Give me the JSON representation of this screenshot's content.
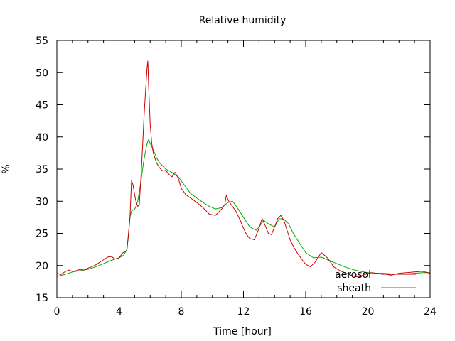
{
  "chart_data": {
    "type": "line",
    "title": "Relative humidity",
    "xlabel": "Time [hour]",
    "ylabel": "%",
    "xlim": [
      0,
      24
    ],
    "ylim": [
      15,
      55
    ],
    "xticks": [
      0,
      4,
      8,
      12,
      16,
      20,
      24
    ],
    "yticks": [
      15,
      20,
      25,
      30,
      35,
      40,
      45,
      50,
      55
    ],
    "grid": false,
    "legend_position": "bottom-right",
    "series": [
      {
        "name": "aerosol",
        "color": "#cc0000",
        "x": [
          0,
          0.25,
          0.5,
          0.75,
          1,
          1.25,
          1.5,
          1.75,
          2,
          2.25,
          2.5,
          2.75,
          3,
          3.25,
          3.5,
          3.75,
          4,
          4.25,
          4.5,
          4.7,
          4.8,
          4.9,
          5,
          5.1,
          5.2,
          5.3,
          5.4,
          5.5,
          5.6,
          5.7,
          5.8,
          5.85,
          5.9,
          6,
          6.1,
          6.2,
          6.4,
          6.6,
          6.8,
          7,
          7.2,
          7.4,
          7.6,
          7.8,
          8,
          8.3,
          8.6,
          9,
          9.4,
          9.8,
          10.2,
          10.6,
          10.8,
          10.9,
          11,
          11.2,
          11.5,
          11.8,
          12,
          12.2,
          12.4,
          12.7,
          13,
          13.2,
          13.4,
          13.6,
          13.8,
          14,
          14.2,
          14.4,
          14.6,
          14.8,
          15,
          15.2,
          15.5,
          15.8,
          16,
          16.3,
          16.6,
          17,
          17.4,
          17.8,
          18.2,
          18.6,
          19,
          19.4,
          19.8,
          20.2,
          20.6,
          21,
          21.5,
          22,
          22.5,
          23,
          23.5,
          24
        ],
        "values": [
          18.8,
          18.6,
          19.0,
          19.3,
          19.1,
          19.2,
          19.4,
          19.3,
          19.6,
          19.8,
          20.1,
          20.5,
          20.9,
          21.3,
          21.4,
          21.0,
          21.2,
          22.0,
          22.3,
          27.5,
          33.2,
          32.5,
          31.0,
          29.8,
          29.2,
          29.5,
          33.5,
          38.0,
          43.0,
          47.0,
          50.8,
          51.8,
          48.0,
          42.0,
          39.0,
          37.5,
          36.0,
          35.2,
          34.7,
          34.8,
          34.2,
          33.8,
          34.5,
          33.6,
          32.0,
          31.0,
          30.5,
          29.8,
          29.0,
          28.0,
          27.8,
          28.8,
          29.5,
          31.0,
          30.2,
          29.5,
          28.5,
          27.0,
          25.8,
          24.8,
          24.2,
          24.0,
          25.8,
          27.3,
          26.2,
          25.0,
          24.8,
          26.0,
          27.3,
          27.8,
          27.0,
          25.5,
          24.0,
          23.0,
          21.8,
          20.8,
          20.2,
          19.8,
          20.5,
          22.0,
          21.2,
          19.8,
          19.2,
          18.8,
          18.4,
          18.2,
          18.6,
          18.9,
          18.8,
          18.7,
          18.5,
          18.8,
          18.9,
          19.0,
          19.1,
          18.8
        ]
      },
      {
        "name": "sheath",
        "color": "#00aa00",
        "x": [
          0,
          0.5,
          1,
          1.5,
          2,
          2.5,
          3,
          3.5,
          4,
          4.3,
          4.5,
          4.6,
          4.7,
          4.8,
          5,
          5.2,
          5.4,
          5.6,
          5.8,
          5.9,
          6,
          6.2,
          6.4,
          6.6,
          6.8,
          7,
          7.4,
          7.8,
          8.2,
          8.6,
          9,
          9.4,
          9.8,
          10.2,
          10.6,
          11,
          11.3,
          11.6,
          12,
          12.4,
          12.8,
          13,
          13.3,
          13.6,
          14,
          14.3,
          14.6,
          14.9,
          15.2,
          15.6,
          16,
          16.5,
          17,
          17.5,
          18,
          18.5,
          19,
          19.5,
          20,
          20.5,
          21,
          21.5,
          22,
          22.5,
          23,
          23.5,
          24
        ],
        "values": [
          18.3,
          18.6,
          19.0,
          19.2,
          19.4,
          19.8,
          20.3,
          20.8,
          21.2,
          21.6,
          22.5,
          24.5,
          27.5,
          28.5,
          28.7,
          30.0,
          33.0,
          36.5,
          39.0,
          39.6,
          39.0,
          38.0,
          36.8,
          36.0,
          35.5,
          35.0,
          34.5,
          33.8,
          32.5,
          31.2,
          30.5,
          29.8,
          29.2,
          28.8,
          29.0,
          29.8,
          30.0,
          29.0,
          27.5,
          26.0,
          25.5,
          26.0,
          27.0,
          26.5,
          26.0,
          27.3,
          27.2,
          26.5,
          25.0,
          23.5,
          22.0,
          21.2,
          21.3,
          20.8,
          20.3,
          19.8,
          19.4,
          19.1,
          18.9,
          18.8,
          18.8,
          18.7,
          18.7,
          18.7,
          18.8,
          18.9,
          18.9
        ]
      }
    ]
  }
}
